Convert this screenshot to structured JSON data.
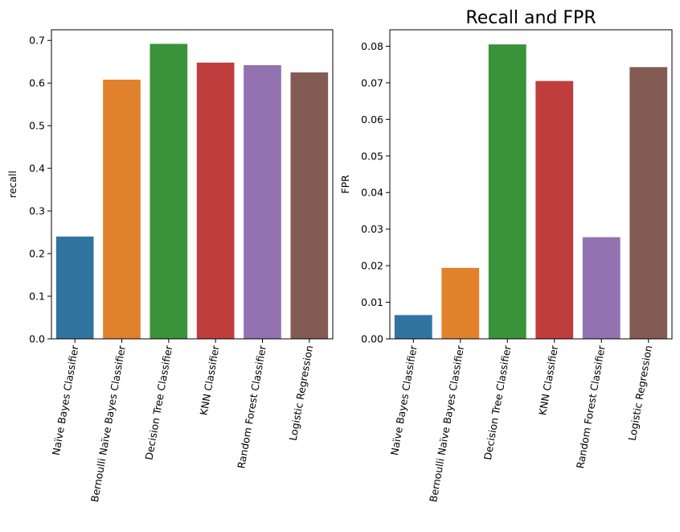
{
  "chart_data": [
    {
      "type": "bar",
      "title": "",
      "xlabel": "",
      "ylabel": "recall",
      "ylim": [
        0,
        0.725
      ],
      "yticks": [
        0.0,
        0.1,
        0.2,
        0.3,
        0.4,
        0.5,
        0.6,
        0.7
      ],
      "ytick_decimals": 1,
      "categories": [
        "Naïve Bayes Classifier",
        "Bernoulli Naïve Bayes Classifier",
        "Decision Tree Classifier",
        "KNN Classifier",
        "Random Forest Classifier",
        "Logistic Regression"
      ],
      "values": [
        0.24,
        0.608,
        0.692,
        0.648,
        0.642,
        0.625
      ],
      "colors": [
        "#3274a1",
        "#e1812c",
        "#3a923a",
        "#c03d3e",
        "#9372b2",
        "#845b53"
      ],
      "grid": false
    },
    {
      "type": "bar",
      "title": "Recall and FPR",
      "xlabel": "",
      "ylabel": "FPR",
      "ylim": [
        0,
        0.0845
      ],
      "yticks": [
        0.0,
        0.01,
        0.02,
        0.03,
        0.04,
        0.05,
        0.06,
        0.07,
        0.08
      ],
      "ytick_decimals": 2,
      "categories": [
        "Naïve Bayes Classifier",
        "Bernoulli Naïve Bayes Classifier",
        "Decision Tree Classifier",
        "KNN Classifier",
        "Random Forest Classifier",
        "Logistic Regression"
      ],
      "values": [
        0.0065,
        0.0194,
        0.0805,
        0.0705,
        0.0278,
        0.0743
      ],
      "colors": [
        "#3274a1",
        "#e1812c",
        "#3a923a",
        "#c03d3e",
        "#9372b2",
        "#845b53"
      ],
      "grid": false
    }
  ]
}
